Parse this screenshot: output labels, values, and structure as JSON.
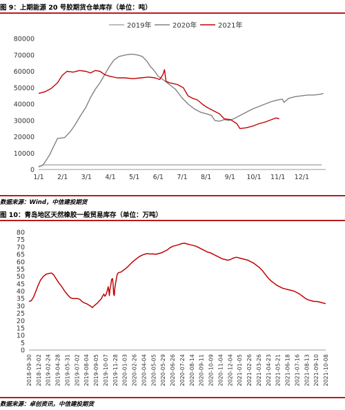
{
  "figures": [
    {
      "caption": "图 9：上期能源 20 号胶期货仓单库存（单位：吨）",
      "source": "数据来源：Wind，中信建投期货"
    },
    {
      "caption": "图 10：青岛地区天然橡胶一般贸易库存（单位：万吨）",
      "source": "数据来源：卓创资讯，中信建投期货"
    }
  ],
  "chart_data": [
    {
      "type": "line",
      "title": "",
      "xlabel": "",
      "ylabel": "",
      "legend_position": "top-center",
      "grid": false,
      "ylim": [
        0,
        80000
      ],
      "yticks": [
        0,
        10000,
        20000,
        30000,
        40000,
        50000,
        60000,
        70000,
        80000
      ],
      "xticks": [
        "1/1",
        "2/1",
        "3/1",
        "4/1",
        "5/1",
        "6/1",
        "7/1",
        "8/1",
        "9/1",
        "10/1",
        "11/1",
        "12/1"
      ],
      "x_domain_days": [
        0,
        365
      ],
      "series": [
        {
          "name": "2019年",
          "color": "#a6a6a6",
          "points": [
            [
              0,
              2000
            ],
            [
              3,
              2200
            ],
            [
              6,
              2800
            ],
            [
              360,
              2800
            ]
          ]
        },
        {
          "name": "2020年",
          "color": "#808080",
          "points": [
            [
              0,
              1500
            ],
            [
              6,
              3000
            ],
            [
              10,
              6000
            ],
            [
              14,
              9000
            ],
            [
              18,
              13000
            ],
            [
              24,
              19000
            ],
            [
              33,
              19500
            ],
            [
              40,
              23000
            ],
            [
              46,
              27000
            ],
            [
              52,
              32000
            ],
            [
              60,
              38000
            ],
            [
              66,
              44000
            ],
            [
              72,
              49000
            ],
            [
              78,
              53000
            ],
            [
              84,
              58000
            ],
            [
              90,
              63000
            ],
            [
              96,
              67000
            ],
            [
              102,
              69000
            ],
            [
              110,
              70000
            ],
            [
              118,
              70500
            ],
            [
              126,
              70000
            ],
            [
              132,
              69000
            ],
            [
              138,
              66000
            ],
            [
              142,
              63000
            ],
            [
              146,
              61000
            ],
            [
              152,
              57000
            ],
            [
              158,
              55000
            ],
            [
              166,
              52000
            ],
            [
              174,
              49000
            ],
            [
              182,
              44000
            ],
            [
              190,
              40000
            ],
            [
              198,
              37000
            ],
            [
              206,
              35000
            ],
            [
              214,
              34000
            ],
            [
              220,
              33000
            ],
            [
              224,
              30000
            ],
            [
              230,
              29500
            ],
            [
              236,
              30500
            ],
            [
              242,
              30000
            ],
            [
              248,
              31000
            ],
            [
              256,
              33000
            ],
            [
              264,
              35000
            ],
            [
              272,
              37000
            ],
            [
              280,
              38500
            ],
            [
              288,
              40000
            ],
            [
              296,
              41500
            ],
            [
              304,
              42500
            ],
            [
              310,
              43000
            ],
            [
              312,
              41000
            ],
            [
              318,
              43500
            ],
            [
              326,
              44500
            ],
            [
              334,
              45000
            ],
            [
              342,
              45500
            ],
            [
              350,
              45500
            ],
            [
              358,
              46000
            ],
            [
              362,
              46500
            ]
          ]
        },
        {
          "name": "2021年",
          "color": "#c00000",
          "points": [
            [
              0,
              46500
            ],
            [
              8,
              47500
            ],
            [
              16,
              49500
            ],
            [
              24,
              53000
            ],
            [
              30,
              57500
            ],
            [
              36,
              60000
            ],
            [
              44,
              59500
            ],
            [
              52,
              60500
            ],
            [
              60,
              60000
            ],
            [
              66,
              59000
            ],
            [
              72,
              60500
            ],
            [
              78,
              60000
            ],
            [
              84,
              58000
            ],
            [
              90,
              57000
            ],
            [
              100,
              56000
            ],
            [
              110,
              56000
            ],
            [
              120,
              55500
            ],
            [
              130,
              56000
            ],
            [
              140,
              56500
            ],
            [
              148,
              56000
            ],
            [
              154,
              55000
            ],
            [
              158,
              58000
            ],
            [
              160,
              61000
            ],
            [
              162,
              54000
            ],
            [
              166,
              53000
            ],
            [
              176,
              52000
            ],
            [
              184,
              50000
            ],
            [
              190,
              45000
            ],
            [
              196,
              43500
            ],
            [
              202,
              42500
            ],
            [
              208,
              40000
            ],
            [
              214,
              38000
            ],
            [
              222,
              36000
            ],
            [
              230,
              34000
            ],
            [
              236,
              31000
            ],
            [
              244,
              30500
            ],
            [
              252,
              28000
            ],
            [
              256,
              25000
            ],
            [
              264,
              25500
            ],
            [
              272,
              26500
            ],
            [
              280,
              28000
            ],
            [
              288,
              29000
            ],
            [
              296,
              30500
            ],
            [
              302,
              31500
            ],
            [
              306,
              31000
            ]
          ]
        }
      ]
    },
    {
      "type": "line",
      "title": "",
      "xlabel": "",
      "ylabel": "",
      "grid": false,
      "ylim": [
        0,
        80
      ],
      "yticks": [
        0,
        5,
        10,
        15,
        20,
        25,
        30,
        35,
        40,
        45,
        50,
        55,
        60,
        65,
        70,
        75,
        80
      ],
      "x_categories": [
        "2018-09-30",
        "2018-12-02",
        "2019-02-24",
        "2019-04-28",
        "2019-05-31",
        "2019-07-02",
        "2019-08-04",
        "2019-09-05",
        "2019-10-07",
        "2019-11-28",
        "2020-01-03",
        "2020-02-26",
        "2020-04-04",
        "2020-05-05",
        "2020-05-29",
        "2020-06-26",
        "2020-07-24",
        "2020-08-14",
        "2020-09-11",
        "2020-10-09",
        "2020-11-04",
        "2020-12-04",
        "2021-01-05",
        "2021-02-26",
        "2021-03-26",
        "2021-04-23",
        "2021-05-21",
        "2021-06-18",
        "2021-07-16",
        "2021-08-13",
        "2021-09-10",
        "2021-10-08"
      ],
      "series": [
        {
          "name": "",
          "color": "#c00000",
          "points": [
            [
              0,
              33
            ],
            [
              0.4,
              33.5
            ],
            [
              0.8,
              36
            ],
            [
              1.2,
              40
            ],
            [
              1.6,
              44
            ],
            [
              2.0,
              47.5
            ],
            [
              2.5,
              50
            ],
            [
              3.0,
              51.5
            ],
            [
              3.5,
              52
            ],
            [
              3.9,
              52.3
            ],
            [
              4.3,
              51
            ],
            [
              4.7,
              48.5
            ],
            [
              5.2,
              45.5
            ],
            [
              5.7,
              43
            ],
            [
              6.2,
              40
            ],
            [
              6.7,
              37.5
            ],
            [
              7.2,
              35.5
            ],
            [
              7.6,
              35
            ],
            [
              8.0,
              35
            ],
            [
              8.4,
              35
            ],
            [
              8.8,
              34.5
            ],
            [
              9.2,
              33
            ],
            [
              9.6,
              32
            ],
            [
              10.0,
              31.5
            ],
            [
              10.4,
              30.5
            ],
            [
              10.8,
              29.5
            ],
            [
              11.0,
              28.8
            ],
            [
              11.3,
              30
            ],
            [
              11.6,
              31
            ],
            [
              11.9,
              32
            ],
            [
              12.2,
              33.5
            ],
            [
              12.5,
              34.5
            ],
            [
              12.7,
              36
            ],
            [
              13.0,
              38
            ],
            [
              13.2,
              36.5
            ],
            [
              13.4,
              38
            ],
            [
              13.6,
              40.5
            ],
            [
              13.75,
              43
            ],
            [
              13.85,
              41
            ],
            [
              13.95,
              37
            ],
            [
              14.05,
              41
            ],
            [
              14.2,
              44
            ],
            [
              14.35,
              48
            ],
            [
              14.5,
              48.5
            ],
            [
              14.6,
              45
            ],
            [
              14.7,
              38
            ],
            [
              14.8,
              37
            ],
            [
              14.9,
              42
            ],
            [
              15.1,
              47
            ],
            [
              15.3,
              51
            ],
            [
              15.5,
              52.5
            ],
            [
              16.0,
              53
            ],
            [
              16.5,
              54.5
            ],
            [
              17.0,
              56
            ],
            [
              17.5,
              58
            ],
            [
              18.0,
              60
            ],
            [
              18.5,
              61.5
            ],
            [
              19.0,
              63
            ],
            [
              19.5,
              64.2
            ],
            [
              20.0,
              65
            ],
            [
              20.5,
              65.5
            ],
            [
              21.0,
              65.2
            ],
            [
              21.5,
              65.3
            ],
            [
              22.0,
              65
            ],
            [
              22.5,
              65.5
            ],
            [
              23.0,
              66
            ],
            [
              23.5,
              67
            ],
            [
              24.0,
              68
            ],
            [
              24.5,
              69.5
            ],
            [
              25.0,
              70.5
            ],
            [
              25.5,
              71
            ],
            [
              26.0,
              71.5
            ],
            [
              26.5,
              72.3
            ],
            [
              27.0,
              72.5
            ],
            [
              27.5,
              72
            ],
            [
              28.0,
              71.5
            ],
            [
              28.5,
              71
            ],
            [
              29.0,
              70.5
            ],
            [
              29.5,
              69.5
            ],
            [
              30.0,
              68.5
            ],
            [
              30.5,
              67.5
            ],
            [
              31.0,
              66.5
            ],
            [
              31.5,
              66
            ],
            [
              32.0,
              65
            ],
            [
              32.5,
              64
            ],
            [
              33.0,
              63
            ],
            [
              33.5,
              62
            ],
            [
              34.0,
              61.5
            ],
            [
              34.5,
              61
            ],
            [
              35.0,
              61.5
            ],
            [
              35.5,
              62.5
            ],
            [
              36.0,
              63
            ],
            [
              36.5,
              62.5
            ],
            [
              37.0,
              62
            ],
            [
              37.5,
              61.5
            ],
            [
              38.0,
              61
            ],
            [
              38.5,
              60
            ],
            [
              39.0,
              59
            ],
            [
              39.5,
              57.5
            ],
            [
              40.0,
              56
            ],
            [
              40.5,
              54
            ],
            [
              41.0,
              51.5
            ],
            [
              41.5,
              49
            ],
            [
              42.0,
              47
            ],
            [
              42.5,
              45.5
            ],
            [
              43.0,
              44
            ],
            [
              43.5,
              43
            ],
            [
              44.0,
              42
            ],
            [
              44.5,
              41.5
            ],
            [
              45.0,
              41
            ],
            [
              45.5,
              40.5
            ],
            [
              46.0,
              40
            ],
            [
              46.5,
              39
            ],
            [
              47.0,
              38
            ],
            [
              47.5,
              36.5
            ],
            [
              48.0,
              35
            ],
            [
              48.5,
              34
            ],
            [
              49.0,
              33.5
            ],
            [
              49.5,
              33
            ],
            [
              50.0,
              33
            ],
            [
              50.5,
              32.5
            ],
            [
              51.0,
              32
            ],
            [
              51.5,
              31.5
            ]
          ]
        }
      ]
    }
  ]
}
